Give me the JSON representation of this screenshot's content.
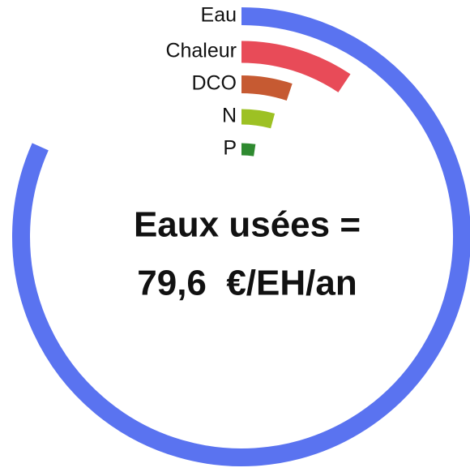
{
  "chart_data": {
    "type": "radial_bar",
    "title": "Eaux usées =",
    "subtitle": "79,6  €/EH/an",
    "categories": [
      "Eau",
      "Chaleur",
      "DCO",
      "N",
      "P"
    ],
    "values": [
      81.7,
      9.4,
      5.1,
      4.2,
      2.4
    ],
    "colors": [
      "#5a73f0",
      "#e84b58",
      "#c65a32",
      "#9dc123",
      "#2f8a30"
    ],
    "lim": [
      0,
      100
    ]
  }
}
